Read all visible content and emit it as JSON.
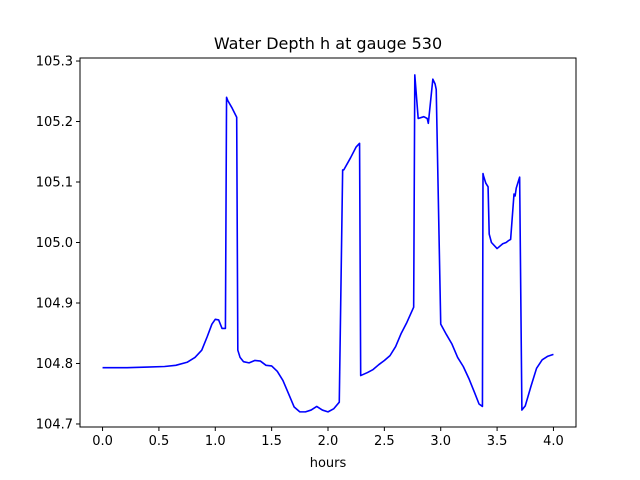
{
  "chart_data": {
    "type": "line",
    "title": "Water Depth h at gauge 530",
    "xlabel": "hours",
    "ylabel": "",
    "xlim": [
      -0.2,
      4.2
    ],
    "ylim": [
      104.695,
      105.305
    ],
    "xticks": [
      0.0,
      0.5,
      1.0,
      1.5,
      2.0,
      2.5,
      3.0,
      3.5,
      4.0
    ],
    "xtick_labels": [
      "0.0",
      "0.5",
      "1.0",
      "1.5",
      "2.0",
      "2.5",
      "3.0",
      "3.5",
      "4.0"
    ],
    "yticks": [
      104.7,
      104.8,
      104.9,
      105.0,
      105.1,
      105.2,
      105.3
    ],
    "ytick_labels": [
      "104.7",
      "104.8",
      "104.9",
      "105.0",
      "105.1",
      "105.2",
      "105.3"
    ],
    "grid": false,
    "series": [
      {
        "color": "#0000ff",
        "x": [
          0.0,
          0.2,
          0.4,
          0.55,
          0.65,
          0.75,
          0.82,
          0.88,
          0.93,
          0.97,
          1.0,
          1.03,
          1.06,
          1.09,
          1.1,
          1.11,
          1.15,
          1.19,
          1.2,
          1.22,
          1.25,
          1.3,
          1.35,
          1.4,
          1.45,
          1.5,
          1.55,
          1.6,
          1.65,
          1.7,
          1.75,
          1.8,
          1.85,
          1.9,
          1.95,
          2.0,
          2.05,
          2.1,
          2.13,
          2.14,
          2.2,
          2.25,
          2.28,
          2.29,
          2.35,
          2.4,
          2.45,
          2.5,
          2.55,
          2.6,
          2.65,
          2.7,
          2.76,
          2.77,
          2.8,
          2.85,
          2.88,
          2.89,
          2.93,
          2.95,
          2.96,
          3.0,
          3.05,
          3.1,
          3.15,
          3.2,
          3.25,
          3.3,
          3.34,
          3.37,
          3.375,
          3.38,
          3.4,
          3.42,
          3.43,
          3.45,
          3.5,
          3.55,
          3.58,
          3.6,
          3.62,
          3.65,
          3.66,
          3.67,
          3.7,
          3.72,
          3.75,
          3.8,
          3.85,
          3.9,
          3.95,
          4.0
        ],
        "y": [
          104.793,
          104.793,
          104.794,
          104.795,
          104.797,
          104.802,
          104.81,
          104.822,
          104.845,
          104.865,
          104.873,
          104.872,
          104.858,
          104.858,
          105.24,
          105.235,
          105.222,
          105.207,
          104.822,
          104.81,
          104.803,
          104.801,
          104.805,
          104.804,
          104.797,
          104.796,
          104.787,
          104.772,
          104.75,
          104.728,
          104.72,
          104.72,
          104.723,
          104.729,
          104.723,
          104.72,
          104.725,
          104.736,
          105.12,
          105.12,
          105.14,
          105.158,
          105.164,
          104.78,
          104.785,
          104.79,
          104.798,
          104.805,
          104.813,
          104.828,
          104.85,
          104.868,
          104.893,
          105.277,
          105.205,
          105.208,
          105.205,
          105.197,
          105.27,
          105.262,
          105.253,
          104.865,
          104.848,
          104.832,
          104.81,
          104.795,
          104.775,
          104.752,
          104.733,
          104.729,
          105.114,
          105.11,
          105.098,
          105.092,
          105.014,
          105.0,
          104.99,
          104.998,
          105.0,
          105.003,
          105.005,
          105.08,
          105.077,
          105.09,
          105.108,
          104.723,
          104.73,
          104.762,
          104.792,
          104.806,
          104.812,
          104.815
        ]
      }
    ]
  }
}
